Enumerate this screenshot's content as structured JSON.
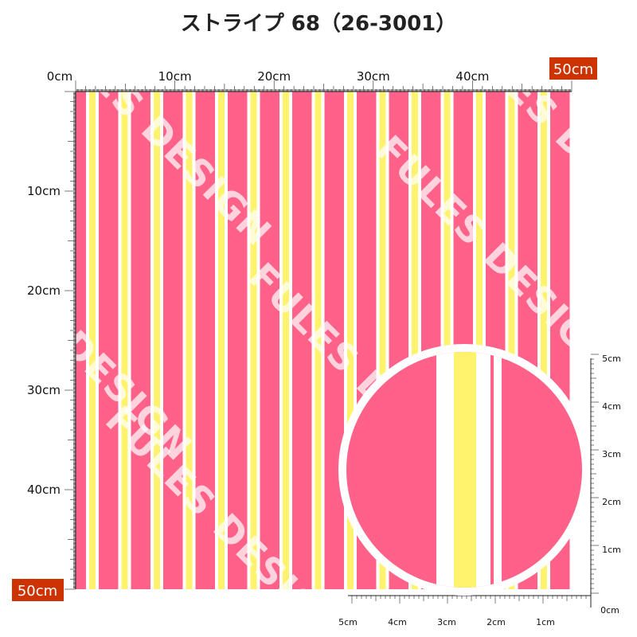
{
  "title": "ストライプ 68（26-3001）",
  "top_ruler": [
    "0cm",
    "10cm",
    "20cm",
    "30cm",
    "40cm",
    "50cm"
  ],
  "left_ruler": [
    "10cm",
    "20cm",
    "30cm",
    "40cm",
    "50cm"
  ],
  "zoom_right_ruler": [
    "5cm",
    "4cm",
    "3cm",
    "2cm",
    "1cm"
  ],
  "zoom_bottom_ruler": [
    "5cm",
    "4cm",
    "3cm",
    "2cm",
    "1cm"
  ],
  "zoom_origin": "0cm",
  "watermark": "FULES DESIGN"
}
